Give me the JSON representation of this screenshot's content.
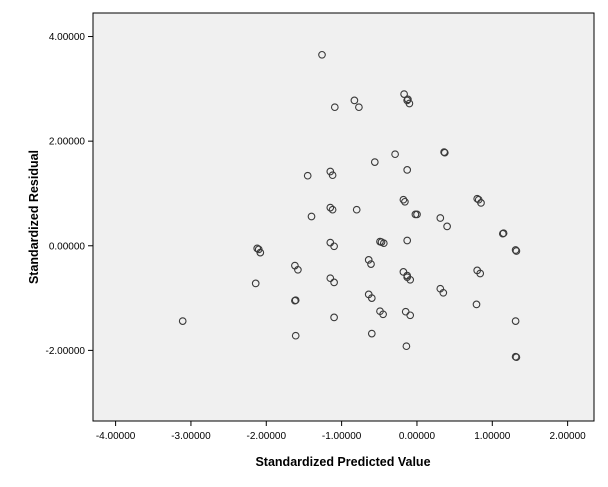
{
  "chart_data": {
    "type": "scatter",
    "title": "",
    "xlabel": "Standardized Predicted Value",
    "ylabel": "Standardized Residual",
    "xlim": [
      -4.3,
      2.35
    ],
    "ylim": [
      -3.35,
      4.45
    ],
    "xticks": [
      -4,
      -3,
      -2,
      -1,
      0,
      1,
      2
    ],
    "xtick_labels": [
      "-4.00000",
      "-3.00000",
      "-2.00000",
      "-1.00000",
      "0.00000",
      "1.00000",
      "2.00000"
    ],
    "yticks": [
      -2,
      0,
      2,
      4
    ],
    "ytick_labels": [
      "-2.00000",
      "0.00000",
      "2.00000",
      "4.00000"
    ],
    "grid": false,
    "plot_background": "#f0f0f0",
    "marker_color": "#3a3a3a",
    "points": [
      {
        "x": -1.26,
        "y": 3.65
      },
      {
        "x": -0.17,
        "y": 2.9
      },
      {
        "x": -0.12,
        "y": 2.8
      },
      {
        "x": -0.13,
        "y": 2.78
      },
      {
        "x": -0.1,
        "y": 2.72
      },
      {
        "x": -0.83,
        "y": 2.78
      },
      {
        "x": -0.77,
        "y": 2.65
      },
      {
        "x": -1.09,
        "y": 2.65
      },
      {
        "x": 0.36,
        "y": 1.79
      },
      {
        "x": 0.37,
        "y": 1.78
      },
      {
        "x": -0.29,
        "y": 1.75
      },
      {
        "x": -0.56,
        "y": 1.6
      },
      {
        "x": -0.13,
        "y": 1.45
      },
      {
        "x": -1.15,
        "y": 1.42
      },
      {
        "x": -1.12,
        "y": 1.35
      },
      {
        "x": -1.45,
        "y": 1.34
      },
      {
        "x": -0.18,
        "y": 0.88
      },
      {
        "x": -0.16,
        "y": 0.84
      },
      {
        "x": 0.8,
        "y": 0.9
      },
      {
        "x": 0.82,
        "y": 0.88
      },
      {
        "x": 0.85,
        "y": 0.82
      },
      {
        "x": -1.15,
        "y": 0.73
      },
      {
        "x": -1.12,
        "y": 0.69
      },
      {
        "x": -0.8,
        "y": 0.69
      },
      {
        "x": -0.02,
        "y": 0.6
      },
      {
        "x": 0.0,
        "y": 0.6
      },
      {
        "x": -1.4,
        "y": 0.56
      },
      {
        "x": 0.31,
        "y": 0.53
      },
      {
        "x": 0.4,
        "y": 0.37
      },
      {
        "x": 1.15,
        "y": 0.24
      },
      {
        "x": 1.14,
        "y": 0.23
      },
      {
        "x": -1.15,
        "y": 0.06
      },
      {
        "x": -1.1,
        "y": -0.01
      },
      {
        "x": -0.49,
        "y": 0.08
      },
      {
        "x": -0.47,
        "y": 0.07
      },
      {
        "x": -0.44,
        "y": 0.05
      },
      {
        "x": -0.13,
        "y": 0.1
      },
      {
        "x": -2.12,
        "y": -0.05
      },
      {
        "x": -2.1,
        "y": -0.07
      },
      {
        "x": -2.08,
        "y": -0.13
      },
      {
        "x": 1.31,
        "y": -0.08
      },
      {
        "x": 1.32,
        "y": -0.1
      },
      {
        "x": -0.64,
        "y": -0.27
      },
      {
        "x": -0.61,
        "y": -0.35
      },
      {
        "x": -1.62,
        "y": -0.38
      },
      {
        "x": -1.58,
        "y": -0.46
      },
      {
        "x": -0.18,
        "y": -0.5
      },
      {
        "x": -0.13,
        "y": -0.57
      },
      {
        "x": -0.13,
        "y": -0.6
      },
      {
        "x": -0.09,
        "y": -0.65
      },
      {
        "x": 0.8,
        "y": -0.47
      },
      {
        "x": 0.84,
        "y": -0.53
      },
      {
        "x": -1.15,
        "y": -0.62
      },
      {
        "x": -1.1,
        "y": -0.7
      },
      {
        "x": -2.14,
        "y": -0.72
      },
      {
        "x": 0.31,
        "y": -0.82
      },
      {
        "x": 0.35,
        "y": -0.9
      },
      {
        "x": -0.64,
        "y": -0.93
      },
      {
        "x": -0.6,
        "y": -1.0
      },
      {
        "x": -1.61,
        "y": -1.04
      },
      {
        "x": -1.62,
        "y": -1.05
      },
      {
        "x": 0.79,
        "y": -1.12
      },
      {
        "x": -0.49,
        "y": -1.25
      },
      {
        "x": -0.45,
        "y": -1.31
      },
      {
        "x": -0.15,
        "y": -1.26
      },
      {
        "x": -0.09,
        "y": -1.33
      },
      {
        "x": -1.1,
        "y": -1.37
      },
      {
        "x": -3.11,
        "y": -1.44
      },
      {
        "x": 1.31,
        "y": -1.44
      },
      {
        "x": -0.6,
        "y": -1.68
      },
      {
        "x": -1.61,
        "y": -1.72
      },
      {
        "x": -0.14,
        "y": -1.92
      },
      {
        "x": 1.31,
        "y": -2.12
      },
      {
        "x": 1.32,
        "y": -2.13
      }
    ]
  }
}
